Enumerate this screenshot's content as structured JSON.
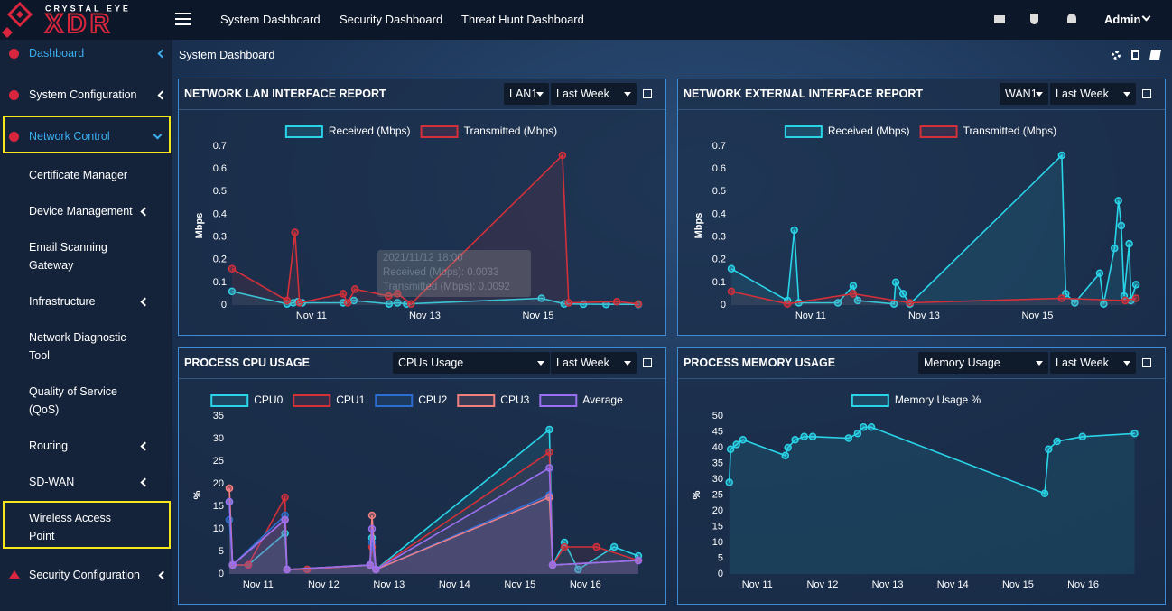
{
  "brand": {
    "top": "CRYSTAL EYE",
    "name": "XDR"
  },
  "top_nav": [
    "System Dashboard",
    "Security Dashboard",
    "Threat Hunt Dashboard"
  ],
  "user": "Admin",
  "sidebar": [
    "Dashboard",
    "System Configuration",
    "Network Control",
    "Certificate Manager",
    "Device Management",
    "Email Scanning Gateway",
    "Infrastructure",
    "Network Diagnostic Tool",
    "Quality of Service (QoS)",
    "Routing",
    "SD-WAN",
    "Wireless Access Point",
    "Security Configuration"
  ],
  "page_title": "System Dashboard",
  "chart_data": [
    {
      "type": "line",
      "title": "NETWORK LAN INTERFACE REPORT",
      "controls": [
        "LAN1",
        "Last Week"
      ],
      "ylabel": "Mbps",
      "xlim": [
        9.6,
        16.77
      ],
      "ylim": [
        0,
        0.7
      ],
      "xticks": [
        {
          "value": 11,
          "label": "Nov 11"
        },
        {
          "value": 13,
          "label": "Nov 13"
        },
        {
          "value": 15,
          "label": "Nov 15"
        }
      ],
      "yticks": [
        0,
        0.1,
        0.2,
        0.3,
        0.4,
        0.5,
        0.6,
        0.7
      ],
      "tooltip": [
        "2021/11/12 18:00",
        "Received (Mbps): 0.0033",
        "Transmitted (Mbps): 0.0092"
      ],
      "series": [
        {
          "name": "Received (Mbps)",
          "color": "#2ad4e8",
          "x": [
            9.6,
            10.57,
            10.68,
            10.76,
            10.84,
            11.56,
            11.75,
            12.37,
            12.52,
            12.68,
            15.06,
            15.46,
            15.8,
            16.2,
            16.77
          ],
          "values": [
            0.06,
            0.005,
            0.01,
            0.015,
            0.01,
            0.01,
            0.02,
            0.005,
            0.01,
            0.005,
            0.03,
            0.005,
            0.004,
            0.003,
            0.003
          ]
        },
        {
          "name": "Transmitted (Mbps)",
          "color": "#d3303a",
          "x": [
            9.6,
            10.57,
            10.71,
            10.79,
            11.56,
            11.64,
            11.77,
            12.36,
            12.52,
            12.76,
            15.43,
            15.54,
            16.39,
            16.77
          ],
          "values": [
            0.16,
            0.02,
            0.32,
            0.01,
            0.05,
            0.01,
            0.07,
            0.04,
            0.05,
            0.005,
            0.66,
            0.01,
            0.015,
            0.005
          ]
        }
      ]
    },
    {
      "type": "line",
      "title": "NETWORK EXTERNAL INTERFACE REPORT",
      "controls": [
        "WAN1",
        "Last Week"
      ],
      "ylabel": "Mbps",
      "xlim": [
        9.6,
        16.77
      ],
      "ylim": [
        0,
        0.7
      ],
      "xticks": [
        {
          "value": 11,
          "label": "Nov 11"
        },
        {
          "value": 13,
          "label": "Nov 13"
        },
        {
          "value": 15,
          "label": "Nov 15"
        }
      ],
      "yticks": [
        0,
        0.1,
        0.2,
        0.3,
        0.4,
        0.5,
        0.6,
        0.7
      ],
      "series": [
        {
          "name": "Received (Mbps)",
          "color": "#2ad4e8",
          "x": [
            9.6,
            10.59,
            10.71,
            10.79,
            11.48,
            11.75,
            11.83,
            12.47,
            12.5,
            12.63,
            12.75,
            15.43,
            15.5,
            15.66,
            16.1,
            16.17,
            16.36,
            16.43,
            16.48,
            16.53,
            16.62,
            16.65,
            16.74
          ],
          "values": [
            0.16,
            0.02,
            0.33,
            0.01,
            0.01,
            0.085,
            0.02,
            0.005,
            0.1,
            0.05,
            0.005,
            0.66,
            0.05,
            0.01,
            0.14,
            0.005,
            0.25,
            0.46,
            0.35,
            0.04,
            0.27,
            0.02,
            0.09
          ]
        },
        {
          "name": "Transmitted (Mbps)",
          "color": "#d3303a",
          "x": [
            9.6,
            10.59,
            11.75,
            12.75,
            15.43,
            16.55,
            16.74
          ],
          "values": [
            0.06,
            0.005,
            0.05,
            0.01,
            0.03,
            0.02,
            0.03
          ]
        }
      ]
    },
    {
      "type": "line",
      "title": "PROCESS CPU USAGE",
      "controls": [
        "CPUs Usage",
        "Last Week"
      ],
      "ylabel": "%",
      "xlim": [
        10.56,
        16.81
      ],
      "ylim": [
        0,
        35
      ],
      "xticks": [
        {
          "value": 11,
          "label": "Nov 11"
        },
        {
          "value": 12,
          "label": "Nov 12"
        },
        {
          "value": 13,
          "label": "Nov 13"
        },
        {
          "value": 14,
          "label": "Nov 14"
        },
        {
          "value": 15,
          "label": "Nov 15"
        },
        {
          "value": 16,
          "label": "Nov 16"
        }
      ],
      "yticks": [
        0,
        5,
        10,
        15,
        20,
        25,
        30,
        35
      ],
      "series": [
        {
          "name": "CPU0",
          "color": "#2ad4e8",
          "x": [
            10.56,
            10.61,
            10.85,
            11.41,
            11.44,
            11.75,
            12.71,
            12.74,
            12.8,
            15.45,
            15.5,
            15.68,
            15.89,
            16.44,
            16.81
          ],
          "values": [
            16,
            2,
            2,
            9,
            1,
            1,
            2,
            8,
            1,
            32,
            2,
            7,
            1,
            6,
            4
          ]
        },
        {
          "name": "CPU1",
          "color": "#d3303a",
          "x": [
            10.56,
            10.61,
            10.85,
            11.41,
            11.44,
            11.75,
            12.71,
            12.74,
            12.8,
            15.45,
            15.5,
            15.68,
            16.17,
            16.81
          ],
          "values": [
            19,
            2,
            2,
            17,
            1,
            1,
            2,
            6,
            1,
            27,
            2,
            6,
            6,
            3
          ]
        },
        {
          "name": "CPU2",
          "color": "#2a6fd0",
          "x": [
            10.56,
            10.61,
            11.41,
            11.44,
            12.71,
            12.74,
            12.8,
            15.45,
            15.5,
            16.81
          ],
          "values": [
            12,
            2,
            13,
            1,
            2,
            7,
            1,
            17.5,
            2,
            3
          ]
        },
        {
          "name": "CPU3",
          "color": "#f08080",
          "x": [
            10.56,
            10.61,
            11.41,
            11.44,
            12.71,
            12.74,
            12.8,
            15.45,
            15.5,
            16.81
          ],
          "values": [
            19,
            2,
            12,
            1,
            2,
            13,
            1,
            17,
            2,
            3
          ]
        },
        {
          "name": "Average",
          "color": "#9a6ff0",
          "x": [
            10.56,
            10.61,
            11.41,
            11.44,
            12.71,
            12.74,
            12.8,
            15.45,
            15.5,
            16.81
          ],
          "values": [
            16,
            2,
            12,
            1,
            2,
            10,
            1,
            23.5,
            2,
            3
          ]
        }
      ]
    },
    {
      "type": "line",
      "title": "PROCESS MEMORY USAGE",
      "controls": [
        "Memory Usage",
        "Last Week"
      ],
      "ylabel": "%",
      "xlim": [
        10.56,
        16.81
      ],
      "ylim": [
        0,
        50
      ],
      "xticks": [
        {
          "value": 11,
          "label": "Nov 11"
        },
        {
          "value": 12,
          "label": "Nov 12"
        },
        {
          "value": 13,
          "label": "Nov 13"
        },
        {
          "value": 14,
          "label": "Nov 14"
        },
        {
          "value": 15,
          "label": "Nov 15"
        },
        {
          "value": 16,
          "label": "Nov 16"
        }
      ],
      "yticks": [
        0,
        5,
        10,
        15,
        20,
        25,
        30,
        35,
        40,
        45,
        50
      ],
      "series": [
        {
          "name": "Memory Usage %",
          "color": "#2ad4e8",
          "x": [
            10.57,
            10.59,
            10.68,
            10.78,
            11.43,
            11.47,
            11.58,
            11.72,
            11.85,
            12.4,
            12.54,
            12.63,
            12.75,
            15.41,
            15.47,
            15.6,
            15.99,
            16.79
          ],
          "values": [
            29,
            39.5,
            41,
            42.5,
            37.5,
            40,
            42.5,
            43.5,
            43.5,
            43,
            44.5,
            46.5,
            46.5,
            25.5,
            39.5,
            42,
            43.5,
            44.5
          ]
        }
      ]
    }
  ]
}
